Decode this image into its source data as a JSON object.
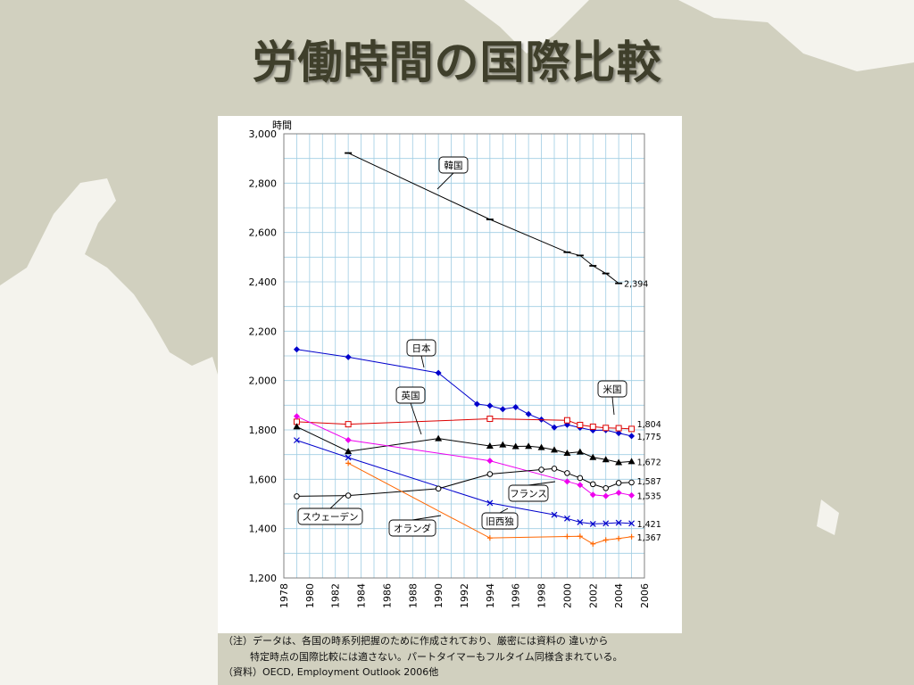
{
  "slide": {
    "title": "労働時間の国際比較",
    "background_color": "#d1d0bf",
    "map_land_color": "#f4f3ed"
  },
  "chart_data": {
    "type": "line",
    "ylabel": "時間",
    "ylim": [
      1200,
      3000
    ],
    "yticks": [
      1200,
      1400,
      1600,
      1800,
      2000,
      2200,
      2400,
      2600,
      2800,
      3000
    ],
    "ytick_labels": [
      "1,200",
      "1,400",
      "1,600",
      "1,800",
      "2,000",
      "2,200",
      "2,400",
      "2,600",
      "2,800",
      "3,000"
    ],
    "xlim": [
      1978,
      2006
    ],
    "xticks": [
      1978,
      1980,
      1982,
      1984,
      1986,
      1988,
      1990,
      1992,
      1994,
      1996,
      1998,
      2000,
      2002,
      2004,
      2006
    ],
    "grid": true,
    "grid_color": "#9fcde3",
    "series": [
      {
        "name": "韓国",
        "color": "#000000",
        "marker": "dash",
        "x": [
          1983,
          1994,
          2000,
          2001,
          2002,
          2003,
          2004
        ],
        "y": [
          2922,
          2653,
          2520,
          2507,
          2465,
          2434,
          2394
        ],
        "end_label": "2,394"
      },
      {
        "name": "日本",
        "color": "#0000cc",
        "marker": "diamond",
        "x": [
          1979,
          1983,
          1990,
          1993,
          1994,
          1995,
          1996,
          1997,
          1998,
          1999,
          2000,
          2001,
          2002,
          2003,
          2004,
          2005
        ],
        "y": [
          2126,
          2095,
          2031,
          1905,
          1898,
          1884,
          1892,
          1864,
          1842,
          1810,
          1821,
          1809,
          1798,
          1799,
          1787,
          1775
        ],
        "end_label": "1,775"
      },
      {
        "name": "米国",
        "color": "#dd0000",
        "marker": "square",
        "x": [
          1979,
          1983,
          1994,
          2000,
          2001,
          2002,
          2003,
          2004,
          2005
        ],
        "y": [
          1833,
          1823,
          1845,
          1839,
          1820,
          1813,
          1808,
          1807,
          1804
        ],
        "end_label": "1,804"
      },
      {
        "name": "英国",
        "color": "#000000",
        "marker": "triangle",
        "x": [
          1979,
          1983,
          1990,
          1994,
          1995,
          1996,
          1997,
          1998,
          1999,
          2000,
          2001,
          2002,
          2003,
          2004,
          2005
        ],
        "y": [
          1813,
          1713,
          1765,
          1735,
          1740,
          1733,
          1734,
          1729,
          1719,
          1706,
          1711,
          1689,
          1680,
          1668,
          1672
        ],
        "end_label": "1,672"
      },
      {
        "name": "フランス",
        "color": "#ee00ee",
        "marker": "diamond",
        "x": [
          1979,
          1983,
          1994,
          2000,
          2001,
          2002,
          2003,
          2004,
          2005
        ],
        "y": [
          1855,
          1759,
          1675,
          1591,
          1577,
          1537,
          1532,
          1545,
          1535
        ],
        "end_label": "1,535"
      },
      {
        "name": "旧西独",
        "color": "#0000cc",
        "marker": "x",
        "x": [
          1979,
          1983,
          1994,
          1999,
          2000,
          2001,
          2002,
          2003,
          2004,
          2005
        ],
        "y": [
          1758,
          1688,
          1504,
          1456,
          1441,
          1426,
          1419,
          1421,
          1424,
          1421
        ],
        "end_label": "1,421"
      },
      {
        "name": "スウェーデン",
        "color": "#000000",
        "marker": "circle",
        "x": [
          1979,
          1983,
          1990,
          1994,
          1998,
          1999,
          2000,
          2001,
          2002,
          2003,
          2004,
          2005
        ],
        "y": [
          1531,
          1534,
          1562,
          1621,
          1639,
          1643,
          1625,
          1605,
          1580,
          1564,
          1585,
          1587
        ],
        "end_label": "1,587"
      },
      {
        "name": "オランダ",
        "color": "#ff6600",
        "marker": "plus",
        "x": [
          1983,
          1994,
          2000,
          2001,
          2002,
          2003,
          2004,
          2005
        ],
        "y": [
          1665,
          1362,
          1368,
          1369,
          1338,
          1354,
          1360,
          1367
        ],
        "end_label": "1,367"
      }
    ]
  },
  "notes": {
    "line1": "（注）データは、各国の時系列把握のために作成されており、厳密には資料の 違いから",
    "line2": "特定時点の国際比較には適さない。パートタイマーもフルタイム同様含まれている。",
    "line3": "（資料）OECD, Employment Outlook 2006他"
  }
}
